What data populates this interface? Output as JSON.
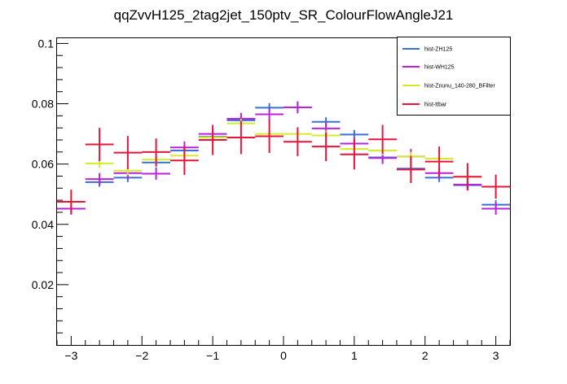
{
  "chart_data": {
    "type": "histogram-errorbar",
    "title": "qqZvvH125_2tag2jet_150ptv_SR_ColourFlowAngleJ21",
    "xlabel": "",
    "ylabel": "",
    "xlim": [
      -3.2,
      3.2
    ],
    "ylim": [
      0,
      0.102
    ],
    "xticks": [
      -3,
      -2,
      -1,
      0,
      1,
      2,
      3
    ],
    "xtick_labels": [
      "−3",
      "−2",
      "−1",
      "0",
      "1",
      "2",
      "3"
    ],
    "yticks": [
      0.02,
      0.04,
      0.06,
      0.08,
      0.1
    ],
    "ytick_labels": [
      "0.02",
      "0.04",
      "0.06",
      "0.08",
      "0.1"
    ],
    "bin_edges": [
      -3.2,
      -2.8,
      -2.4,
      -2.0,
      -1.6,
      -1.2,
      -0.8,
      -0.4,
      0.0,
      0.4,
      0.8,
      1.2,
      1.6,
      2.0,
      2.4,
      2.8,
      3.2
    ],
    "grid": false,
    "legend_position": "top-right",
    "series": [
      {
        "name": "hist-ZH125",
        "color": "#3a6fd8",
        "values": [
          0.0452,
          0.054,
          0.0555,
          0.0605,
          0.0645,
          0.069,
          0.0745,
          0.0787,
          0.0788,
          0.074,
          0.0698,
          0.0622,
          0.0585,
          0.0555,
          0.053,
          0.0465
        ],
        "errors": [
          0.0015,
          0.0015,
          0.0015,
          0.0015,
          0.0015,
          0.0015,
          0.0015,
          0.0015,
          0.0015,
          0.0015,
          0.0015,
          0.0015,
          0.0015,
          0.0015,
          0.0015,
          0.0015
        ]
      },
      {
        "name": "hist-WH125",
        "color": "#bb22dd",
        "values": [
          0.0452,
          0.055,
          0.057,
          0.0568,
          0.0655,
          0.07,
          0.075,
          0.0765,
          0.0788,
          0.0718,
          0.0668,
          0.062,
          0.0625,
          0.057,
          0.0532,
          0.0452
        ],
        "errors": [
          0.002,
          0.002,
          0.002,
          0.002,
          0.002,
          0.002,
          0.002,
          0.002,
          0.002,
          0.002,
          0.002,
          0.002,
          0.0025,
          0.002,
          0.002,
          0.002
        ]
      },
      {
        "name": "hist-Znunu_140-280_BFilter",
        "color": "#d6ec2a",
        "values": [
          0.0475,
          0.0602,
          0.0578,
          0.0615,
          0.0628,
          0.0688,
          0.0735,
          0.07,
          0.07,
          0.0695,
          0.065,
          0.0645,
          0.0625,
          0.0618,
          0.0558,
          0.0525
        ],
        "errors": [
          0.0015,
          0.0015,
          0.0015,
          0.0015,
          0.0015,
          0.0015,
          0.0015,
          0.0015,
          0.0015,
          0.0015,
          0.0015,
          0.0015,
          0.0015,
          0.0015,
          0.0015,
          0.0015
        ]
      },
      {
        "name": "hist-ttbar",
        "color": "#e8143c",
        "values": [
          0.0475,
          0.0665,
          0.0638,
          0.064,
          0.0612,
          0.068,
          0.0688,
          0.0692,
          0.0674,
          0.0658,
          0.0632,
          0.0682,
          0.0582,
          0.0608,
          0.0558,
          0.0525
        ],
        "errors": [
          0.004,
          0.0055,
          0.0055,
          0.0045,
          0.0048,
          0.005,
          0.0055,
          0.0055,
          0.0048,
          0.0048,
          0.005,
          0.0048,
          0.0045,
          0.005,
          0.0045,
          0.004
        ]
      }
    ]
  }
}
